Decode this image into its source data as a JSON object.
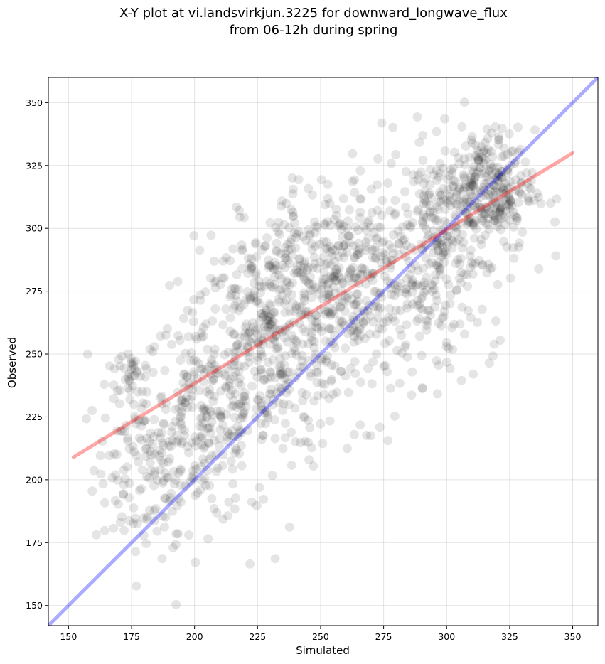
{
  "chart_data": {
    "type": "scatter",
    "title_line1": "X-Y plot at vi.landsvirkjun.3225 for downward_longwave_flux",
    "title_line2": "from 06-12h during spring",
    "xlabel": "Simulated",
    "ylabel": "Observed",
    "xlim": [
      142,
      360
    ],
    "ylim": [
      142,
      360
    ],
    "x_ticks": [
      150,
      175,
      200,
      225,
      250,
      275,
      300,
      325,
      350
    ],
    "y_ticks": [
      150,
      175,
      200,
      225,
      250,
      275,
      300,
      325,
      350
    ],
    "grid": true,
    "legend": "none",
    "points": {
      "color": "#000000",
      "opacity": 0.1,
      "approx_count": 1800,
      "clusters": [
        {
          "center": [
            180,
            205
          ],
          "spread": [
            10,
            18
          ],
          "weight": 0.08
        },
        {
          "center": [
            175,
            243
          ],
          "spread": [
            5,
            6
          ],
          "weight": 0.02
        },
        {
          "center": [
            205,
            225
          ],
          "spread": [
            12,
            22
          ],
          "weight": 0.14
        },
        {
          "center": [
            230,
            255
          ],
          "spread": [
            14,
            22
          ],
          "weight": 0.2
        },
        {
          "center": [
            250,
            285
          ],
          "spread": [
            16,
            16
          ],
          "weight": 0.12
        },
        {
          "center": [
            270,
            270
          ],
          "spread": [
            18,
            22
          ],
          "weight": 0.14
        },
        {
          "center": [
            295,
            292
          ],
          "spread": [
            14,
            20
          ],
          "weight": 0.13
        },
        {
          "center": [
            315,
            315
          ],
          "spread": [
            10,
            12
          ],
          "weight": 0.17
        }
      ]
    },
    "series": [
      {
        "kind": "identity",
        "color": "#0000ff",
        "opacity": 0.33,
        "from": [
          142,
          142
        ],
        "to": [
          360,
          360
        ]
      },
      {
        "kind": "regression",
        "color": "#ff0000",
        "opacity": 0.35,
        "from": [
          152,
          209
        ],
        "to": [
          350,
          330
        ]
      }
    ]
  }
}
